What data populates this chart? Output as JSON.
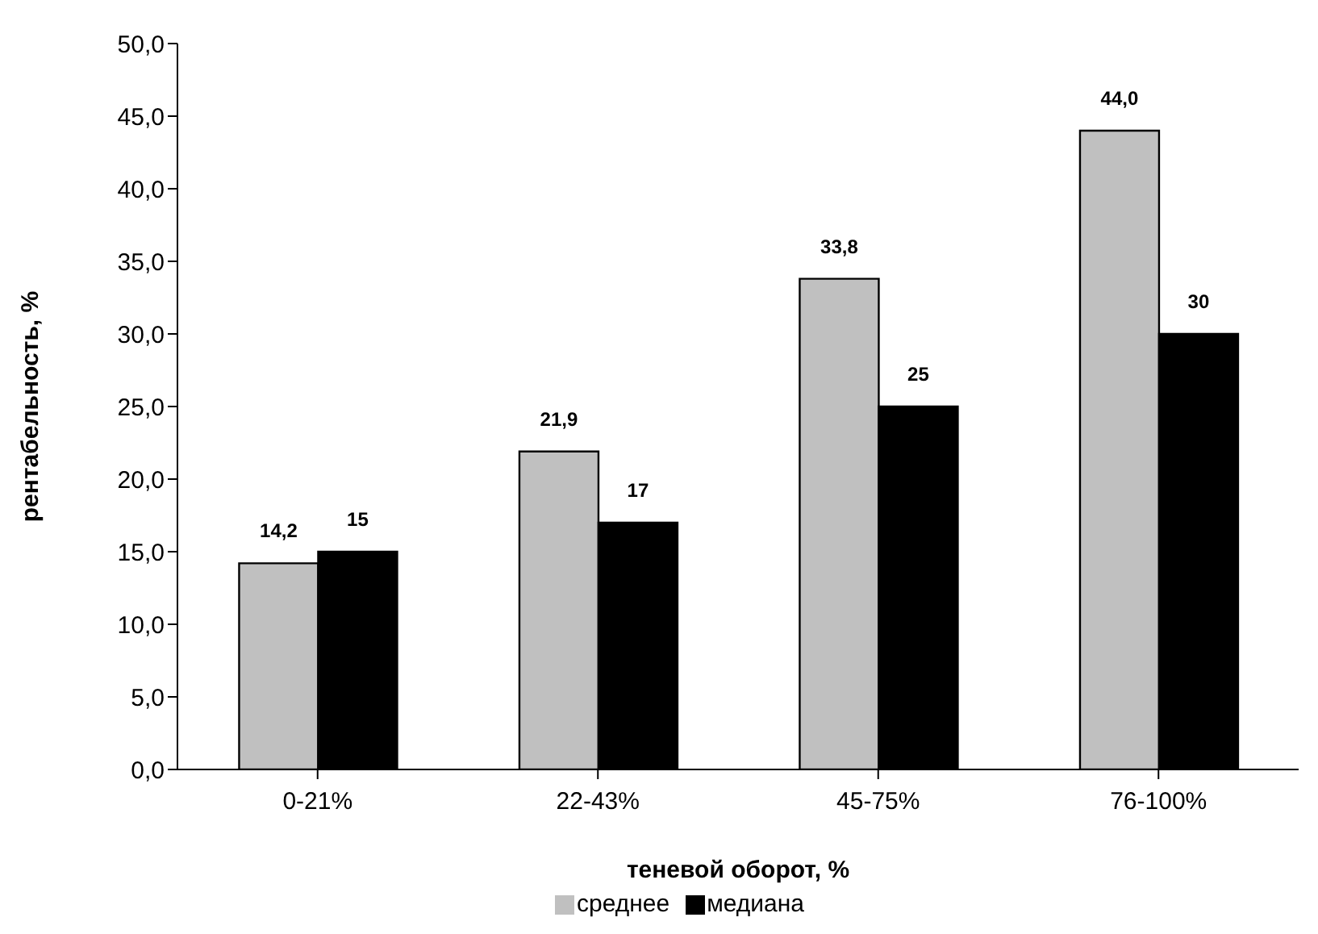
{
  "chart_data": {
    "type": "bar",
    "xlabel": "теневой оборот, %",
    "ylabel": "рентабельность, %",
    "categories": [
      "0-21%",
      "22-43%",
      "45-75%",
      "76-100%"
    ],
    "series": [
      {
        "name": "среднее",
        "color": "#c0c0c0",
        "values": [
          14.2,
          21.9,
          33.8,
          44.0
        ],
        "value_labels": [
          "14,2",
          "21,9",
          "33,8",
          "44,0"
        ]
      },
      {
        "name": "медиана",
        "color": "#000000",
        "values": [
          15,
          17,
          25,
          30
        ],
        "value_labels": [
          "15",
          "17",
          "25",
          "30"
        ]
      }
    ],
    "ylim": [
      0,
      50
    ],
    "yticks": [
      {
        "value": 0,
        "label": "0,0"
      },
      {
        "value": 5,
        "label": "5,0"
      },
      {
        "value": 10,
        "label": "10,0"
      },
      {
        "value": 15,
        "label": "15,0"
      },
      {
        "value": 20,
        "label": "20,0"
      },
      {
        "value": 25,
        "label": "25,0"
      },
      {
        "value": 30,
        "label": "30,0"
      },
      {
        "value": 35,
        "label": "35,0"
      },
      {
        "value": 40,
        "label": "40,0"
      },
      {
        "value": 45,
        "label": "45,0"
      },
      {
        "value": 50,
        "label": "50,0"
      }
    ],
    "grid": false,
    "legend": "bottom"
  }
}
